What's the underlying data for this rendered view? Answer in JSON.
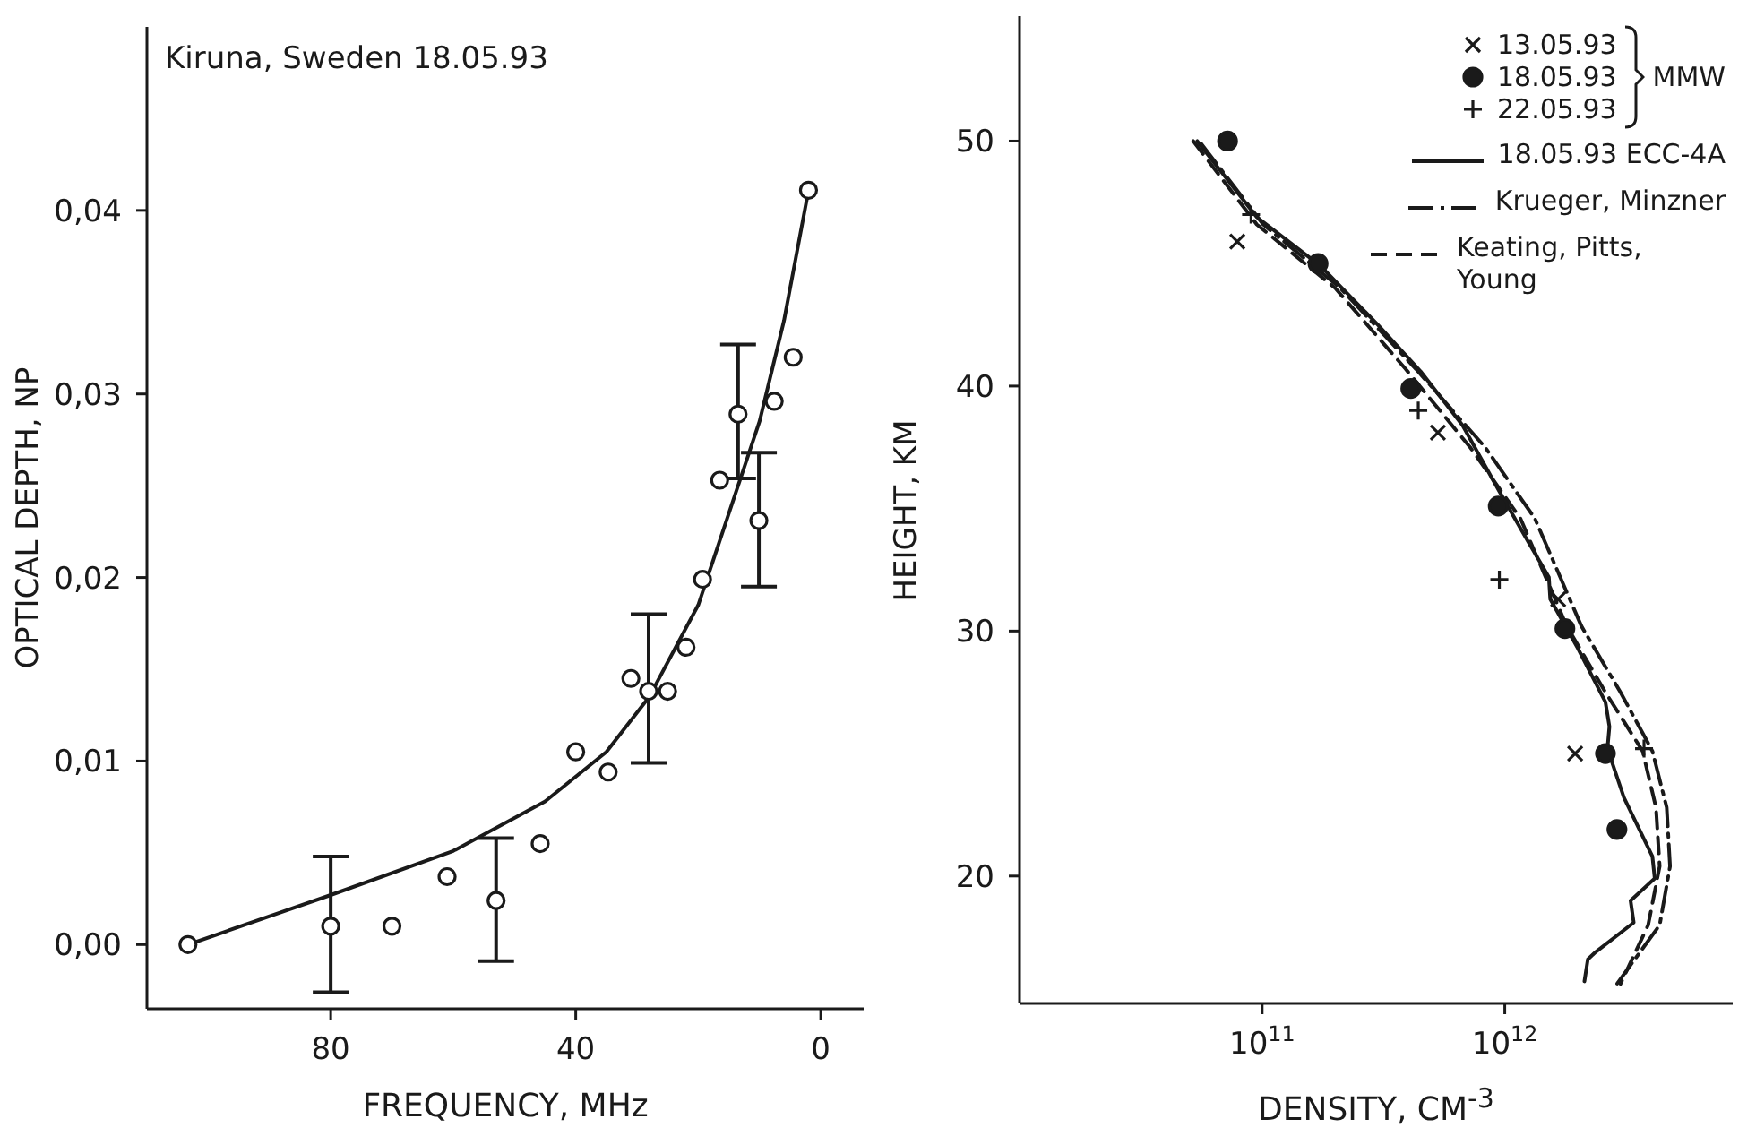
{
  "chart_data": [
    {
      "type": "scatter",
      "title": "Kiruna, Sweden 18.05.93",
      "xlabel": "FREQUENCY, MHz",
      "ylabel": "OPTICAL DEPTH, NP",
      "xlim": [
        110,
        -7
      ],
      "xticks": [
        80,
        40,
        0
      ],
      "ylim": [
        -0.0035,
        0.05
      ],
      "yticks": [
        {
          "value": 0,
          "label": "0,00"
        },
        {
          "value": 0.01,
          "label": "0,01"
        },
        {
          "value": 0.02,
          "label": "0,02"
        },
        {
          "value": 0.03,
          "label": "0,03"
        },
        {
          "value": 0.04,
          "label": "0,04"
        }
      ],
      "series": [
        {
          "color": "#1a1a1a",
          "marker": "circle",
          "x": [
            103.3,
            80,
            70,
            61,
            53,
            45.8,
            40,
            34.7,
            31,
            28.1,
            25,
            22,
            19.3,
            16.5,
            13.5,
            10.1,
            7.6,
            4.5,
            2
          ],
          "values": [
            0,
            0.001,
            0.001,
            0.0037,
            0.0024,
            0.0055,
            0.0105,
            0.0094,
            0.0145,
            0.0138,
            0.0138,
            0.0162,
            0.0199,
            0.0253,
            0.0289,
            0.0231,
            0.0296,
            0.032,
            0.0411
          ],
          "errors": [
            null,
            [
              -0.0026,
              0.0048
            ],
            null,
            null,
            [
              -0.0009,
              0.0058
            ],
            null,
            null,
            null,
            null,
            [
              0.0099,
              0.018
            ],
            null,
            null,
            null,
            null,
            [
              0.0254,
              0.0327
            ],
            [
              0.0195,
              0.0268
            ],
            null,
            null,
            null
          ]
        },
        {
          "type": "line",
          "color": "#1a1a1a",
          "marker": "none",
          "line_style": "solid",
          "x": [
            103.3,
            80,
            60,
            45,
            35,
            28,
            20,
            15,
            10,
            6,
            2
          ],
          "values": [
            0,
            0.0027,
            0.0051,
            0.0078,
            0.0105,
            0.0135,
            0.0185,
            0.0235,
            0.0285,
            0.034,
            0.0411
          ]
        }
      ]
    },
    {
      "type": "line",
      "xlabel": "DENSITY, CM$^{-3}$",
      "ylabel": "HEIGHT, KM",
      "log": "x",
      "xlim": [
        10000000000.0,
        8700000000000.0
      ],
      "xticks": [
        {
          "value": 100000000000.0,
          "label": "10$^{11}$"
        },
        {
          "value": 1000000000000.0,
          "label": "10$^{12}$"
        }
      ],
      "ylim": [
        14.8,
        55.1
      ],
      "yticks": [
        20,
        30,
        40,
        50
      ],
      "legend": "top right",
      "legend_title": "MMW",
      "series": [
        {
          "type": "scatter",
          "name": "13.05.93",
          "color": "#1a1a1a",
          "marker": "x",
          "x": [
            79000000000.0,
            530000000000.0,
            1660000000000.0,
            1950000000000.0
          ],
          "values": [
            45.9,
            38.1,
            31.3,
            25
          ]
        },
        {
          "type": "scatter",
          "name": "18.05.93",
          "color": "#1a1a1a",
          "marker": "circle",
          "x": [
            72000000000.0,
            170000000000.0,
            410000000000.0,
            940000000000.0,
            1770000000000.0,
            2600000000000.0,
            2900000000000.0
          ],
          "values": [
            50,
            45,
            39.9,
            35.1,
            30.1,
            25,
            21.9
          ]
        },
        {
          "type": "scatter",
          "name": "22.05.93",
          "color": "#1a1a1a",
          "marker": "cross",
          "x": [
            90000000000.0,
            440000000000.0,
            950000000000.0,
            3750000000000.0
          ],
          "values": [
            47,
            39,
            32.1,
            25.2
          ]
        },
        {
          "name": "18.05.93 ECC-4A",
          "color": "#1a1a1a",
          "marker": "none",
          "line_style": "solid",
          "x": [
            54000000000.0,
            95000000000.0,
            174000000000.0,
            300000000000.0,
            450000000000.0,
            670000000000.0,
            950000000000.0,
            1240000000000.0,
            1520000000000.0,
            1540000000000.0,
            2000000000000.0,
            2600000000000.0,
            2700000000000.0,
            2650000000000.0,
            3100000000000.0,
            4060000000000.0,
            4150000000000.0,
            3300000000000.0,
            3400000000000.0,
            2370000000000.0,
            2200000000000.0,
            2130000000000.0
          ],
          "values": [
            50,
            46.9,
            44.9,
            42.5,
            40.6,
            38.4,
            35.7,
            33.7,
            32.2,
            31.3,
            29.3,
            27.1,
            26.1,
            25.2,
            23.2,
            20.8,
            19.9,
            19,
            18.1,
            16.9,
            16.6,
            15.7
          ]
        },
        {
          "name": "Krueger, Minzner",
          "color": "#1a1a1a",
          "marker": "none",
          "line_style": "dashdot",
          "x": [
            56000000000.0,
            101000000000.0,
            210000000000.0,
            430000000000.0,
            830000000000.0,
            1330000000000.0,
            2070000000000.0,
            3000000000000.0,
            4060000000000.0,
            4650000000000.0,
            4800000000000.0,
            4350000000000.0,
            2900000000000.0
          ],
          "values": [
            49.9,
            46.6,
            44,
            40.7,
            37.5,
            34.6,
            30.2,
            27.5,
            25.1,
            22.8,
            20.4,
            18,
            15.6
          ]
        },
        {
          "name": "Keating, Pitts, Young",
          "color": "#1a1a1a",
          "marker": "none",
          "line_style": "dashed",
          "x": [
            52000000000.0,
            95000000000.0,
            200000000000.0,
            390000000000.0,
            720000000000.0,
            1160000000000.0,
            1800000000000.0,
            2600000000000.0,
            3700000000000.0,
            4200000000000.0,
            4350000000000.0,
            3900000000000.0,
            3000000000000.0
          ],
          "values": [
            50,
            46.6,
            44,
            40.7,
            37.5,
            34.6,
            30.2,
            27.5,
            25.1,
            22.8,
            20.4,
            18,
            15.6
          ]
        }
      ]
    }
  ]
}
